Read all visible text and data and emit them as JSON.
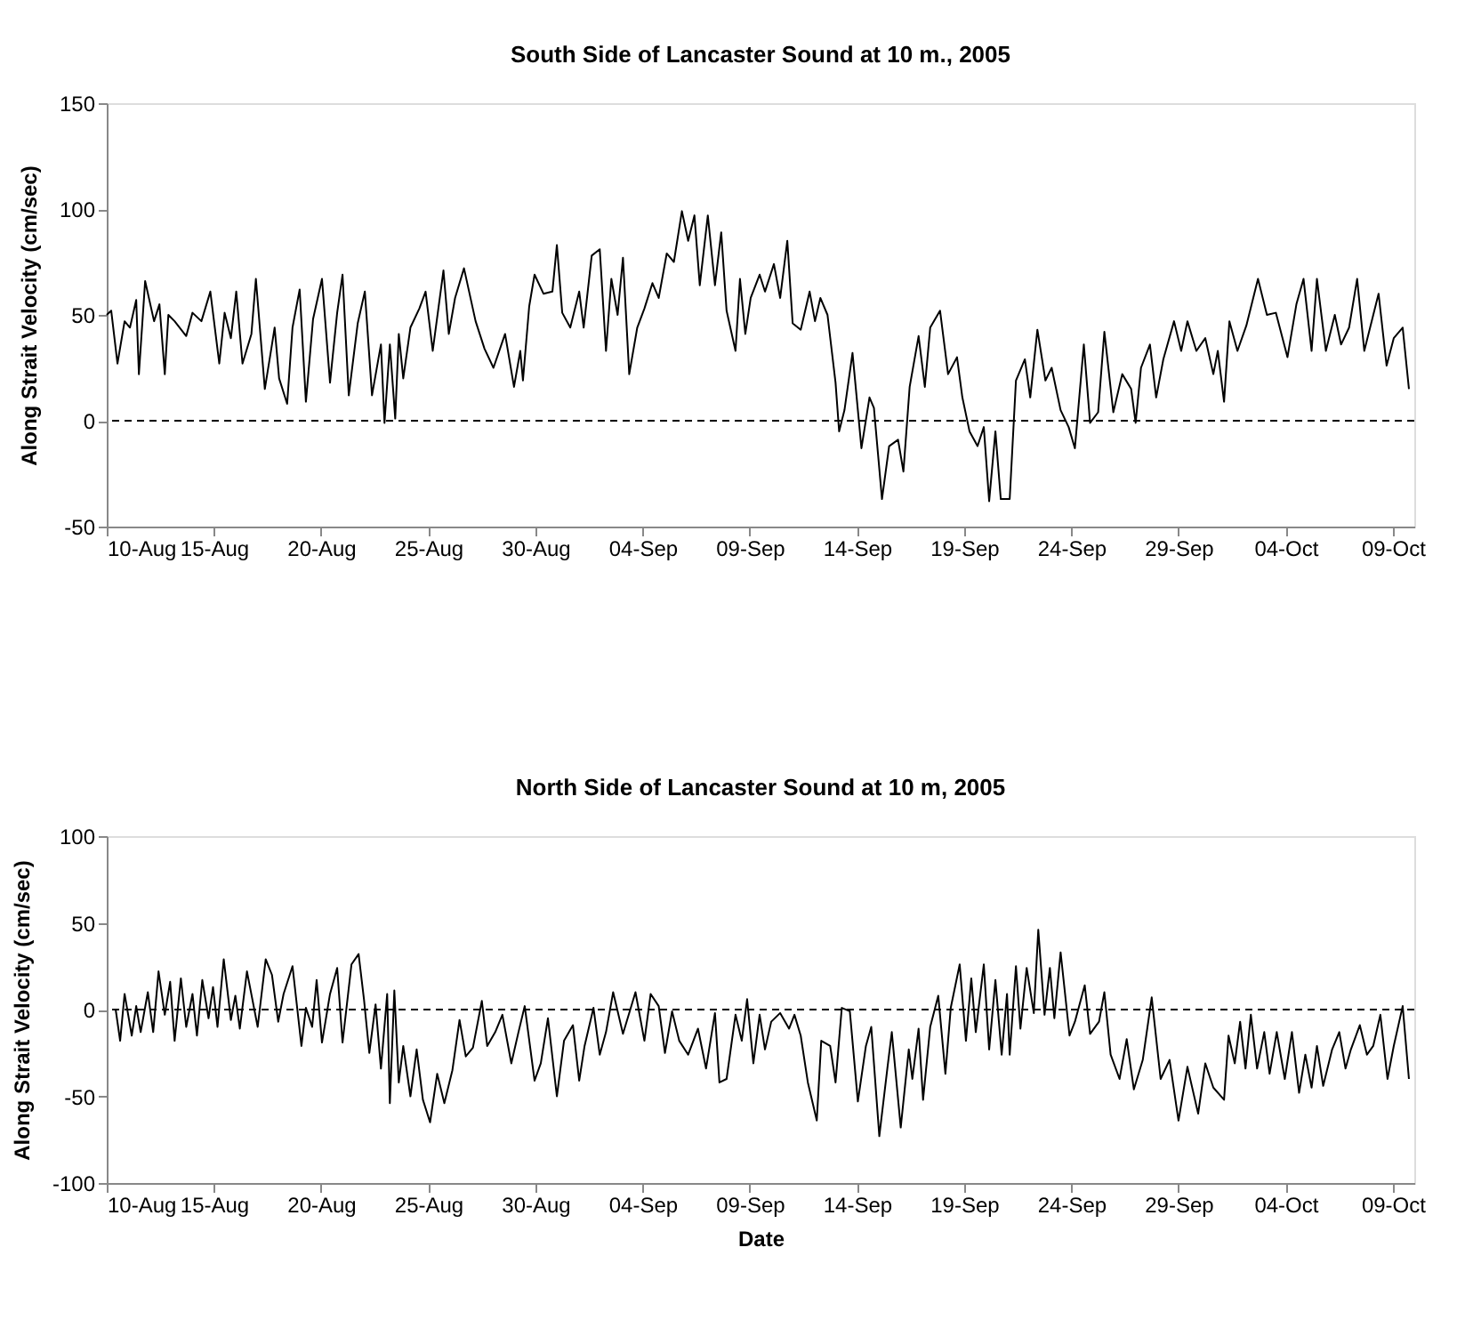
{
  "chart_data": [
    {
      "type": "line",
      "title": "South Side of Lancaster Sound at 10 m., 2005",
      "ylabel": "Along Strait Velocity (cm/sec)",
      "xlim": [
        "2005-08-10T00:00",
        "2005-10-10T00:00"
      ],
      "ylim": [
        -50,
        150
      ],
      "yticks": [
        -50,
        0,
        50,
        100,
        150
      ],
      "xticks": [
        {
          "value": "2005-08-10",
          "label": "10-Aug"
        },
        {
          "value": "2005-08-15",
          "label": "15-Aug"
        },
        {
          "value": "2005-08-20",
          "label": "20-Aug"
        },
        {
          "value": "2005-08-25",
          "label": "25-Aug"
        },
        {
          "value": "2005-08-30",
          "label": "30-Aug"
        },
        {
          "value": "2005-09-04",
          "label": "04-Sep"
        },
        {
          "value": "2005-09-09",
          "label": "09-Sep"
        },
        {
          "value": "2005-09-14",
          "label": "14-Sep"
        },
        {
          "value": "2005-09-19",
          "label": "19-Sep"
        },
        {
          "value": "2005-09-24",
          "label": "24-Sep"
        },
        {
          "value": "2005-09-29",
          "label": "29-Sep"
        },
        {
          "value": "2005-10-04",
          "label": "04-Oct"
        },
        {
          "value": "2005-10-09",
          "label": "09-Oct"
        }
      ],
      "ref_lines": [
        {
          "axis": "y",
          "value": 0,
          "line_style": "dashed"
        }
      ],
      "series": [
        {
          "color": "#000000",
          "x": [
            "2005-08-10T00:00",
            "2005-08-10T05:00",
            "2005-08-10T12:00",
            "2005-08-10T20:00",
            "2005-08-11T02:00",
            "2005-08-11T09:00",
            "2005-08-11T12:00",
            "2005-08-11T19:00",
            "2005-08-12T05:00",
            "2005-08-12T11:00",
            "2005-08-12T17:00",
            "2005-08-12T21:00",
            "2005-08-13T04:00",
            "2005-08-13T17:00",
            "2005-08-14T00:00",
            "2005-08-14T10:00",
            "2005-08-14T20:00",
            "2005-08-15T06:00",
            "2005-08-15T12:00",
            "2005-08-15T19:00",
            "2005-08-16T01:00",
            "2005-08-16T08:00",
            "2005-08-16T18:00",
            "2005-08-16T23:00",
            "2005-08-17T09:00",
            "2005-08-17T17:00",
            "2005-08-17T20:00",
            "2005-08-18T01:00",
            "2005-08-18T10:00",
            "2005-08-18T16:00",
            "2005-08-19T00:00",
            "2005-08-19T07:00",
            "2005-08-19T15:00",
            "2005-08-20T01:00",
            "2005-08-20T10:00",
            "2005-08-20T18:00",
            "2005-08-21T00:00",
            "2005-08-21T07:00",
            "2005-08-21T17:00",
            "2005-08-22T01:00",
            "2005-08-22T09:00",
            "2005-08-22T19:00",
            "2005-08-22T23:00",
            "2005-08-23T05:00",
            "2005-08-23T11:00",
            "2005-08-23T15:00",
            "2005-08-23T20:00",
            "2005-08-24T04:00",
            "2005-08-24T14:00",
            "2005-08-24T21:00",
            "2005-08-25T05:00",
            "2005-08-25T17:00",
            "2005-08-25T23:00",
            "2005-08-26T06:00",
            "2005-08-26T16:00",
            "2005-08-27T05:00",
            "2005-08-27T15:00",
            "2005-08-28T01:00",
            "2005-08-28T14:00",
            "2005-08-29T00:00",
            "2005-08-29T07:00",
            "2005-08-29T10:00",
            "2005-08-29T17:00",
            "2005-08-29T23:00",
            "2005-08-30T09:00",
            "2005-08-30T19:00",
            "2005-08-31T00:00",
            "2005-08-31T06:00",
            "2005-08-31T15:00",
            "2005-09-01T01:00",
            "2005-09-01T06:00",
            "2005-09-01T15:00",
            "2005-09-02T00:00",
            "2005-09-02T07:00",
            "2005-09-02T13:00",
            "2005-09-02T20:00",
            "2005-09-03T02:00",
            "2005-09-03T09:00",
            "2005-09-03T18:00",
            "2005-09-04T02:00",
            "2005-09-04T11:00",
            "2005-09-04T18:00",
            "2005-09-05T03:00",
            "2005-09-05T11:00",
            "2005-09-05T20:00",
            "2005-09-06T03:00",
            "2005-09-06T10:00",
            "2005-09-06T16:00",
            "2005-09-07T01:00",
            "2005-09-07T09:00",
            "2005-09-07T16:00",
            "2005-09-07T22:00",
            "2005-09-08T08:00",
            "2005-09-08T13:00",
            "2005-09-08T19:00",
            "2005-09-09T01:00",
            "2005-09-09T11:00",
            "2005-09-09T17:00",
            "2005-09-10T03:00",
            "2005-09-10T10:00",
            "2005-09-10T18:00",
            "2005-09-11T00:00",
            "2005-09-11T09:00",
            "2005-09-11T19:00",
            "2005-09-12T01:00",
            "2005-09-12T07:00",
            "2005-09-12T15:00",
            "2005-09-13T00:00",
            "2005-09-13T04:00",
            "2005-09-13T10:00",
            "2005-09-13T19:00",
            "2005-09-14T05:00",
            "2005-09-14T14:00",
            "2005-09-14T19:00",
            "2005-09-15T04:00",
            "2005-09-15T12:00",
            "2005-09-15T22:00",
            "2005-09-16T04:00",
            "2005-09-16T11:00",
            "2005-09-16T21:00",
            "2005-09-17T04:00",
            "2005-09-17T10:00",
            "2005-09-17T21:00",
            "2005-09-18T06:00",
            "2005-09-18T16:00",
            "2005-09-18T22:00",
            "2005-09-19T06:00",
            "2005-09-19T15:00",
            "2005-09-19T22:00",
            "2005-09-20T04:00",
            "2005-09-20T11:00",
            "2005-09-20T17:00",
            "2005-09-21T03:00",
            "2005-09-21T10:00",
            "2005-09-21T20:00",
            "2005-09-22T02:00",
            "2005-09-22T10:00",
            "2005-09-22T19:00",
            "2005-09-23T02:00",
            "2005-09-23T12:00",
            "2005-09-23T21:00",
            "2005-09-24T04:00",
            "2005-09-24T14:00",
            "2005-09-24T21:00",
            "2005-09-25T06:00",
            "2005-09-25T13:00",
            "2005-09-25T23:00",
            "2005-09-26T09:00",
            "2005-09-26T19:00",
            "2005-09-27T00:00",
            "2005-09-27T06:00",
            "2005-09-27T16:00",
            "2005-09-27T23:00",
            "2005-09-28T07:00",
            "2005-09-28T19:00",
            "2005-09-29T03:00",
            "2005-09-29T10:00",
            "2005-09-29T20:00",
            "2005-09-30T06:00",
            "2005-09-30T15:00",
            "2005-09-30T20:00",
            "2005-10-01T03:00",
            "2005-10-01T09:00",
            "2005-10-01T18:00",
            "2005-10-02T04:00",
            "2005-10-02T17:00",
            "2005-10-03T03:00",
            "2005-10-03T13:00",
            "2005-10-04T02:00",
            "2005-10-04T12:00",
            "2005-10-04T20:00",
            "2005-10-05T05:00",
            "2005-10-05T11:00",
            "2005-10-05T21:00",
            "2005-10-06T07:00",
            "2005-10-06T14:00",
            "2005-10-06T23:00",
            "2005-10-07T08:00",
            "2005-10-07T16:00",
            "2005-10-08T08:00",
            "2005-10-08T17:00",
            "2005-10-09T01:00",
            "2005-10-09T11:00",
            "2005-10-09T18:00"
          ],
          "values": [
            50,
            52,
            27,
            47,
            44,
            57,
            22,
            66,
            47,
            55,
            22,
            50,
            47,
            40,
            51,
            47,
            61,
            27,
            51,
            39,
            61,
            27,
            41,
            67,
            15,
            36,
            44,
            20,
            8,
            44,
            62,
            9,
            48,
            67,
            18,
            51,
            69,
            12,
            46,
            61,
            12,
            36,
            -1,
            36,
            1,
            41,
            20,
            44,
            53,
            61,
            33,
            71,
            41,
            58,
            72,
            47,
            34,
            25,
            41,
            16,
            33,
            19,
            54,
            69,
            60,
            61,
            83,
            51,
            44,
            61,
            44,
            78,
            81,
            33,
            67,
            50,
            77,
            22,
            44,
            53,
            65,
            58,
            79,
            75,
            99,
            85,
            97,
            64,
            97,
            64,
            89,
            52,
            33,
            67,
            41,
            58,
            69,
            61,
            74,
            58,
            85,
            46,
            43,
            61,
            47,
            58,
            50,
            18,
            -5,
            5,
            32,
            -13,
            11,
            6,
            -37,
            -12,
            -9,
            -24,
            16,
            40,
            16,
            44,
            52,
            22,
            30,
            11,
            -5,
            -12,
            -3,
            -38,
            -5,
            -37,
            -37,
            19,
            29,
            11,
            43,
            19,
            25,
            5,
            -3,
            -13,
            36,
            -1,
            4,
            42,
            4,
            22,
            15,
            -1,
            25,
            36,
            11,
            29,
            47,
            33,
            47,
            33,
            39,
            22,
            33,
            9,
            47,
            33,
            45,
            67,
            50,
            51,
            30,
            55,
            67,
            33,
            67,
            33,
            50,
            36,
            44,
            67,
            33,
            60,
            26,
            39,
            44,
            15
          ]
        }
      ]
    },
    {
      "type": "line",
      "title": "North Side of Lancaster Sound at 10 m, 2005",
      "ylabel": "Along Strait Velocity (cm/sec)",
      "xlabel": "Date",
      "xlim": [
        "2005-08-10T00:00",
        "2005-10-10T00:00"
      ],
      "ylim": [
        -100,
        100
      ],
      "yticks": [
        -100,
        -50,
        0,
        50,
        100
      ],
      "xticks": [
        {
          "value": "2005-08-10",
          "label": "10-Aug"
        },
        {
          "value": "2005-08-15",
          "label": "15-Aug"
        },
        {
          "value": "2005-08-20",
          "label": "20-Aug"
        },
        {
          "value": "2005-08-25",
          "label": "25-Aug"
        },
        {
          "value": "2005-08-30",
          "label": "30-Aug"
        },
        {
          "value": "2005-09-04",
          "label": "04-Sep"
        },
        {
          "value": "2005-09-09",
          "label": "09-Sep"
        },
        {
          "value": "2005-09-14",
          "label": "14-Sep"
        },
        {
          "value": "2005-09-19",
          "label": "19-Sep"
        },
        {
          "value": "2005-09-24",
          "label": "24-Sep"
        },
        {
          "value": "2005-09-29",
          "label": "29-Sep"
        },
        {
          "value": "2005-10-04",
          "label": "04-Oct"
        },
        {
          "value": "2005-10-09",
          "label": "09-Oct"
        }
      ],
      "ref_lines": [
        {
          "axis": "y",
          "value": 0,
          "line_style": "dashed"
        }
      ],
      "series": [
        {
          "color": "#000000",
          "x": [
            "2005-08-10T10:00",
            "2005-08-10T15:00",
            "2005-08-10T20:00",
            "2005-08-11T04:00",
            "2005-08-11T09:00",
            "2005-08-11T14:00",
            "2005-08-11T22:00",
            "2005-08-12T04:00",
            "2005-08-12T10:00",
            "2005-08-12T17:00",
            "2005-08-12T23:00",
            "2005-08-13T04:00",
            "2005-08-13T11:00",
            "2005-08-13T17:00",
            "2005-08-14T00:00",
            "2005-08-14T05:00",
            "2005-08-14T11:00",
            "2005-08-14T18:00",
            "2005-08-14T23:00",
            "2005-08-15T04:00",
            "2005-08-15T11:00",
            "2005-08-15T19:00",
            "2005-08-16T00:00",
            "2005-08-16T05:00",
            "2005-08-16T13:00",
            "2005-08-17T01:00",
            "2005-08-17T10:00",
            "2005-08-17T17:00",
            "2005-08-18T00:00",
            "2005-08-18T06:00",
            "2005-08-18T16:00",
            "2005-08-19T02:00",
            "2005-08-19T07:00",
            "2005-08-19T14:00",
            "2005-08-19T19:00",
            "2005-08-20T01:00",
            "2005-08-20T10:00",
            "2005-08-20T18:00",
            "2005-08-21T00:00",
            "2005-08-21T10:00",
            "2005-08-21T18:00",
            "2005-08-22T00:00",
            "2005-08-22T06:00",
            "2005-08-22T13:00",
            "2005-08-22T19:00",
            "2005-08-23T02:00",
            "2005-08-23T05:00",
            "2005-08-23T10:00",
            "2005-08-23T15:00",
            "2005-08-23T20:00",
            "2005-08-24T04:00",
            "2005-08-24T11:00",
            "2005-08-24T18:00",
            "2005-08-25T02:00",
            "2005-08-25T10:00",
            "2005-08-25T18:00",
            "2005-08-26T03:00",
            "2005-08-26T11:00",
            "2005-08-26T18:00",
            "2005-08-27T02:00",
            "2005-08-27T12:00",
            "2005-08-27T18:00",
            "2005-08-28T03:00",
            "2005-08-28T11:00",
            "2005-08-28T21:00",
            "2005-08-29T05:00",
            "2005-08-29T12:00",
            "2005-08-29T23:00",
            "2005-08-30T06:00",
            "2005-08-30T14:00",
            "2005-08-31T00:00",
            "2005-08-31T08:00",
            "2005-08-31T18:00",
            "2005-09-01T01:00",
            "2005-09-01T07:00",
            "2005-09-01T17:00",
            "2005-09-02T00:00",
            "2005-09-02T07:00",
            "2005-09-02T15:00",
            "2005-09-03T02:00",
            "2005-09-03T16:00",
            "2005-09-04T02:00",
            "2005-09-04T09:00",
            "2005-09-04T18:00",
            "2005-09-05T01:00",
            "2005-09-05T09:00",
            "2005-09-05T17:00",
            "2005-09-06T03:00",
            "2005-09-06T14:00",
            "2005-09-06T23:00",
            "2005-09-07T09:00",
            "2005-09-07T14:00",
            "2005-09-07T22:00",
            "2005-09-08T08:00",
            "2005-09-08T15:00",
            "2005-09-08T21:00",
            "2005-09-09T04:00",
            "2005-09-09T11:00",
            "2005-09-09T17:00",
            "2005-09-10T00:00",
            "2005-09-10T10:00",
            "2005-09-10T20:00",
            "2005-09-11T02:00",
            "2005-09-11T09:00",
            "2005-09-11T17:00",
            "2005-09-12T03:00",
            "2005-09-12T08:00",
            "2005-09-12T18:00",
            "2005-09-13T00:00",
            "2005-09-13T07:00",
            "2005-09-13T16:00",
            "2005-09-14T01:00",
            "2005-09-14T10:00",
            "2005-09-14T16:00",
            "2005-09-15T01:00",
            "2005-09-15T10:00",
            "2005-09-15T15:00",
            "2005-09-16T01:00",
            "2005-09-16T10:00",
            "2005-09-16T14:00",
            "2005-09-16T21:00",
            "2005-09-17T02:00",
            "2005-09-17T10:00",
            "2005-09-17T19:00",
            "2005-09-18T03:00",
            "2005-09-18T09:00",
            "2005-09-18T19:00",
            "2005-09-19T02:00",
            "2005-09-19T08:00",
            "2005-09-19T13:00",
            "2005-09-19T22:00",
            "2005-09-20T04:00",
            "2005-09-20T11:00",
            "2005-09-20T18:00",
            "2005-09-21T00:00",
            "2005-09-21T03:00",
            "2005-09-21T10:00",
            "2005-09-21T15:00",
            "2005-09-21T22:00",
            "2005-09-22T06:00",
            "2005-09-22T11:00",
            "2005-09-22T18:00",
            "2005-09-23T00:00",
            "2005-09-23T05:00",
            "2005-09-23T12:00",
            "2005-09-23T22:00",
            "2005-09-24T04:00",
            "2005-09-24T15:00",
            "2005-09-24T21:00",
            "2005-09-25T07:00",
            "2005-09-25T13:00",
            "2005-09-25T20:00",
            "2005-09-26T06:00",
            "2005-09-26T14:00",
            "2005-09-26T22:00",
            "2005-09-27T08:00",
            "2005-09-27T18:00",
            "2005-09-28T04:00",
            "2005-09-28T14:00",
            "2005-09-29T00:00",
            "2005-09-29T10:00",
            "2005-09-29T22:00",
            "2005-09-30T06:00",
            "2005-09-30T15:00",
            "2005-10-01T03:00",
            "2005-10-01T08:00",
            "2005-10-01T15:00",
            "2005-10-01T21:00",
            "2005-10-02T03:00",
            "2005-10-02T09:00",
            "2005-10-02T16:00",
            "2005-10-03T00:00",
            "2005-10-03T06:00",
            "2005-10-03T14:00",
            "2005-10-03T23:00",
            "2005-10-04T07:00",
            "2005-10-04T15:00",
            "2005-10-04T22:00",
            "2005-10-05T05:00",
            "2005-10-05T11:00",
            "2005-10-05T18:00",
            "2005-10-06T04:00",
            "2005-10-06T12:00",
            "2005-10-06T19:00",
            "2005-10-07T01:00",
            "2005-10-07T11:00",
            "2005-10-07T19:00",
            "2005-10-08T02:00",
            "2005-10-08T10:00",
            "2005-10-08T18:00",
            "2005-10-09T01:00",
            "2005-10-09T11:00",
            "2005-10-09T18:00"
          ],
          "values": [
            0,
            -18,
            9,
            -15,
            2,
            -13,
            10,
            -13,
            22,
            -3,
            16,
            -18,
            18,
            -10,
            9,
            -15,
            17,
            -5,
            13,
            -10,
            29,
            -6,
            8,
            -11,
            22,
            -10,
            29,
            20,
            -7,
            9,
            25,
            -21,
            1,
            -10,
            17,
            -19,
            9,
            24,
            -19,
            26,
            32,
            6,
            -25,
            3,
            -34,
            9,
            -54,
            11,
            -42,
            -21,
            -50,
            -23,
            -52,
            -65,
            -37,
            -54,
            -35,
            -6,
            -27,
            -22,
            5,
            -21,
            -13,
            -3,
            -31,
            -13,
            2,
            -41,
            -31,
            -5,
            -50,
            -18,
            -9,
            -41,
            -21,
            1,
            -26,
            -13,
            10,
            -14,
            10,
            -18,
            9,
            2,
            -25,
            -1,
            -18,
            -26,
            -11,
            -34,
            -2,
            -42,
            -40,
            -3,
            -18,
            6,
            -31,
            -3,
            -23,
            -7,
            -2,
            -11,
            -3,
            -15,
            -42,
            -64,
            -18,
            -21,
            -42,
            1,
            -1,
            -53,
            -21,
            -10,
            -73,
            -34,
            -13,
            -68,
            -23,
            -40,
            -11,
            -52,
            -10,
            8,
            -37,
            1,
            26,
            -18,
            18,
            -13,
            26,
            -23,
            17,
            -26,
            9,
            -26,
            25,
            -11,
            24,
            -2,
            46,
            -3,
            24,
            -5,
            33,
            -15,
            -7,
            14,
            -14,
            -7,
            10,
            -26,
            -40,
            -17,
            -46,
            -29,
            7,
            -40,
            -29,
            -64,
            -33,
            -60,
            -31,
            -45,
            -52,
            -15,
            -31,
            -7,
            -34,
            -3,
            -34,
            -13,
            -37,
            -13,
            -40,
            -13,
            -48,
            -26,
            -45,
            -21,
            -44,
            -23,
            -13,
            -34,
            -23,
            -9,
            -26,
            -21,
            -3,
            -40,
            -21,
            2,
            -40
          ]
        }
      ]
    }
  ]
}
